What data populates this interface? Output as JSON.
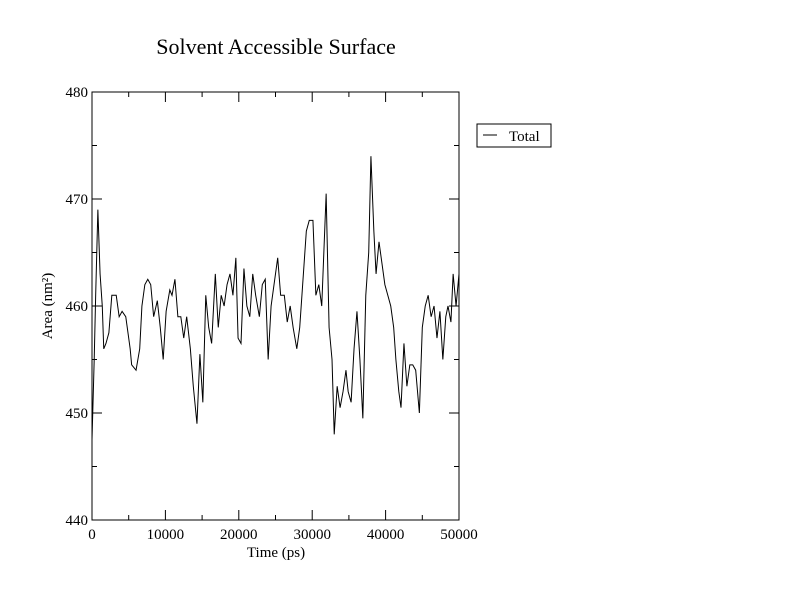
{
  "chart_data": {
    "type": "line",
    "title": "Solvent Accessible Surface",
    "xlabel": "Time (ps)",
    "ylabel": "Area (nm²)",
    "x": [
      0,
      300,
      500,
      800,
      1100,
      1400,
      1600,
      1900,
      2300,
      2700,
      3300,
      3700,
      4100,
      4600,
      5200,
      5400,
      6000,
      6500,
      6800,
      7200,
      7600,
      8000,
      8400,
      8900,
      9300,
      9700,
      10100,
      10600,
      10900,
      11300,
      11700,
      12100,
      12500,
      12900,
      13400,
      13800,
      14300,
      14700,
      15100,
      15500,
      15900,
      16300,
      16800,
      17200,
      17600,
      18000,
      18400,
      18800,
      19200,
      19600,
      19900,
      20300,
      20700,
      21100,
      21500,
      21900,
      22300,
      22800,
      23200,
      23600,
      24000,
      24400,
      24800,
      25300,
      25700,
      26200,
      26600,
      27000,
      27400,
      27900,
      28300,
      28700,
      29200,
      29600,
      30100,
      30500,
      30900,
      31300,
      31900,
      32300,
      32700,
      33000,
      33400,
      33800,
      34200,
      34600,
      34900,
      35300,
      35700,
      36100,
      36500,
      36900,
      37300,
      37700,
      38000,
      38400,
      38700,
      39100,
      39500,
      39900,
      40300,
      40700,
      41100,
      41400,
      41800,
      42100,
      42500,
      42900,
      43300,
      43700,
      44100,
      44600,
      45000,
      45400,
      45800,
      46200,
      46600,
      47000,
      47400,
      47800,
      48200,
      48500,
      48900,
      49200,
      49600,
      50000
    ],
    "series": [
      {
        "name": "Total",
        "color": "#000000",
        "values": [
          447.5,
          455,
          461,
          469,
          463,
          460,
          456,
          456.5,
          457.5,
          461,
          461,
          459,
          459.5,
          459,
          456,
          454.5,
          454,
          456,
          460,
          462,
          462.5,
          462,
          459,
          460.5,
          458,
          455,
          459.5,
          461.5,
          461,
          462.5,
          459,
          459,
          457,
          459,
          456,
          452.5,
          449,
          455.5,
          451,
          461,
          458,
          456.5,
          463,
          458,
          461,
          460,
          462,
          463,
          461,
          464.5,
          457,
          456.5,
          463.5,
          460,
          459,
          463,
          461,
          459,
          462,
          462.5,
          455,
          460,
          462,
          464.5,
          461,
          461,
          458.5,
          460,
          458,
          456,
          458,
          462,
          467,
          468,
          468,
          461,
          462,
          460,
          470.5,
          458,
          455,
          448,
          452.5,
          450.5,
          452,
          454,
          452,
          451,
          456,
          459.5,
          455,
          449.5,
          461,
          465,
          474,
          467,
          463,
          466,
          464,
          462,
          461,
          460,
          458,
          455,
          452,
          450.5,
          456.5,
          452.5,
          454.5,
          454.5,
          454,
          450,
          458,
          460,
          461,
          459,
          460,
          457,
          459.5,
          455,
          459,
          460,
          458.5,
          463,
          460,
          463
        ]
      }
    ],
    "xlim": [
      0,
      50000
    ],
    "ylim": [
      440,
      480
    ],
    "xticks": [
      0,
      10000,
      20000,
      30000,
      40000,
      50000
    ],
    "yticks": [
      440,
      450,
      460,
      470,
      480
    ],
    "xminorticks": [
      5000,
      15000,
      25000,
      35000,
      45000
    ],
    "yminorticks": [
      445,
      455,
      465,
      475
    ]
  }
}
